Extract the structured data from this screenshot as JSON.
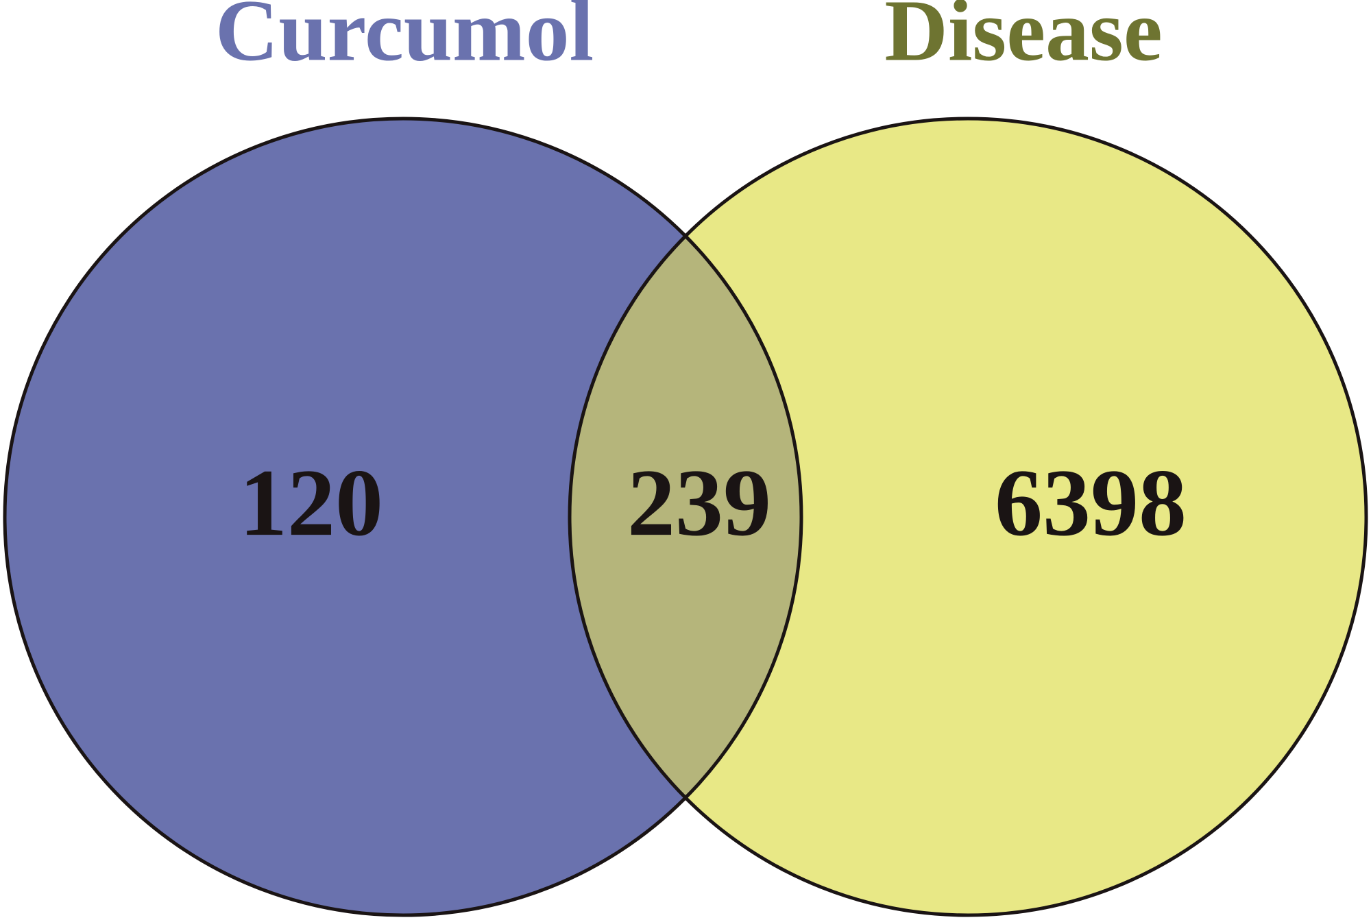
{
  "chart_data": {
    "type": "venn",
    "sets": [
      {
        "name": "Curcumol",
        "color": "#6a72ae",
        "title_color": "#6a72ae",
        "value": 120
      },
      {
        "name": "Disease",
        "color": "#e8e886",
        "title_color": "#6e7431",
        "value": 6398
      }
    ],
    "intersection": {
      "value": 239,
      "color": "#b5b57b"
    }
  }
}
